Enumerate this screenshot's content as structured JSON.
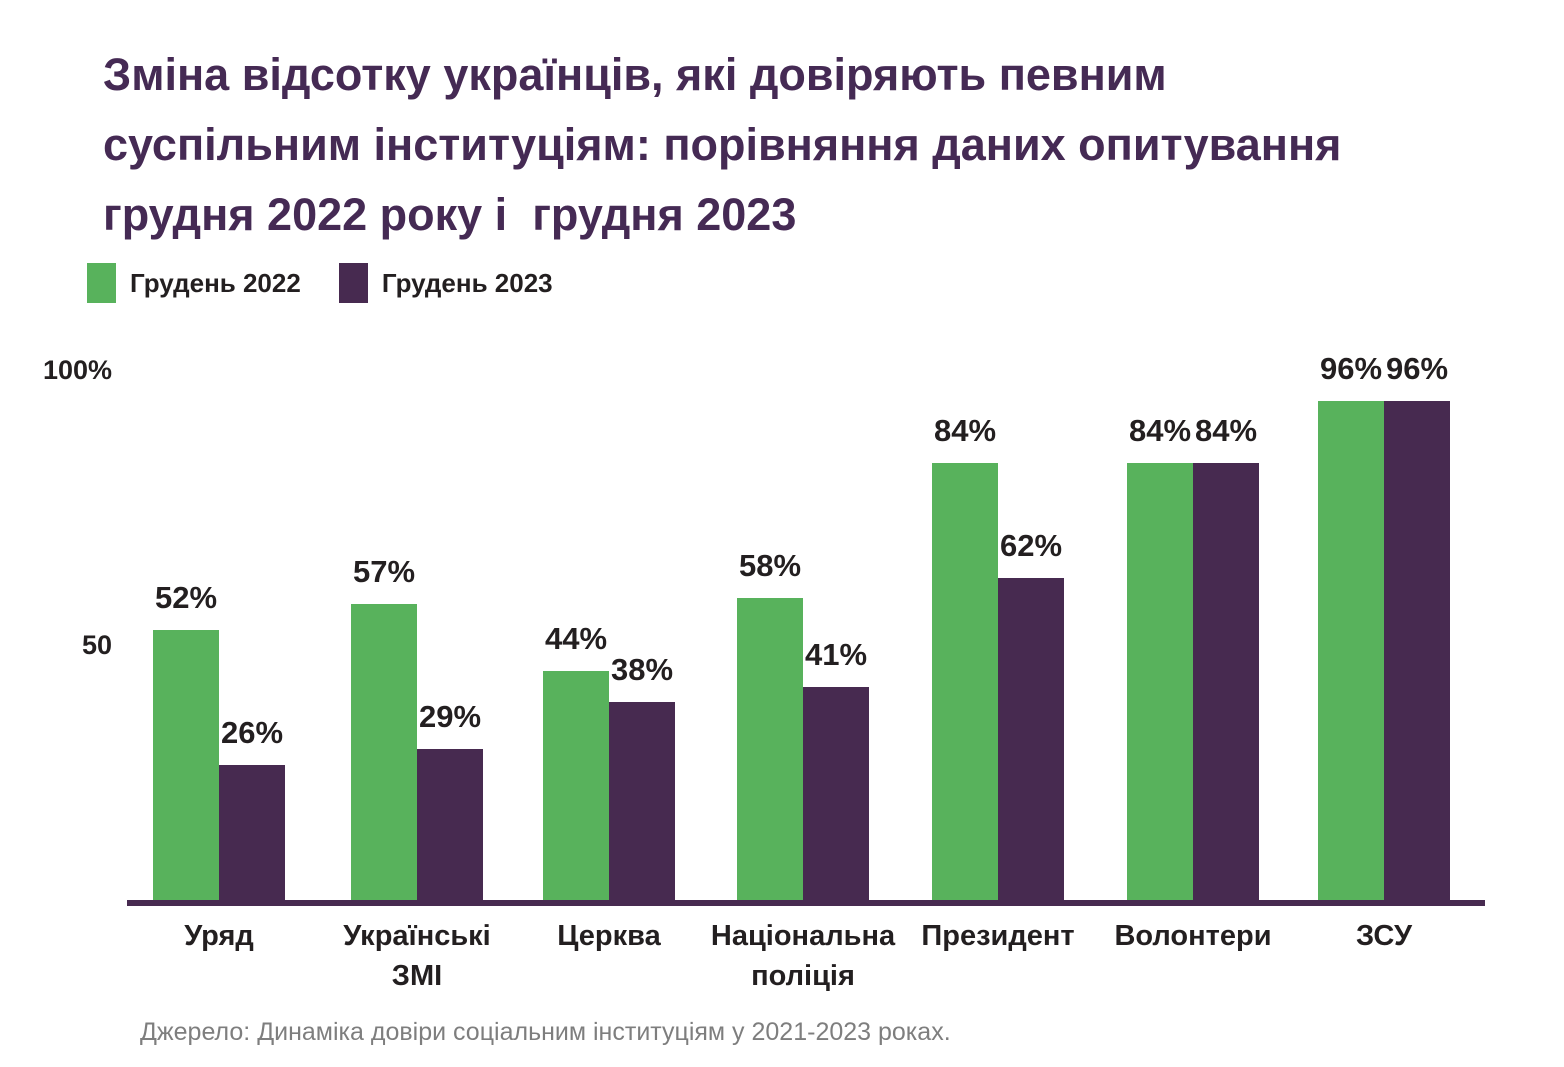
{
  "title": "Зміна відсотку українців, які довіряють певним суспільним інституціям: порівняння даних опитування грудня 2022 року і  грудня 2023",
  "legend": [
    {
      "label": "Грудень 2022",
      "color": "#58b25c"
    },
    {
      "label": "Грудень 2023",
      "color": "#472a50"
    }
  ],
  "y_axis": {
    "labels": [
      {
        "text": "100%",
        "value": 100
      },
      {
        "text": "50",
        "value": 50
      }
    ]
  },
  "source": "Джерело: Динаміка довіри соціальним інституціям у 2021-2023 роках.",
  "colors": {
    "title": "#452a54",
    "bar_2022": "#58b25c",
    "bar_2023": "#472a50",
    "axis_line": "#472a50",
    "text": "#231f20",
    "source_text": "#7e7e7e",
    "background": "#ffffff"
  },
  "chart_data": {
    "type": "bar",
    "title": "Зміна відсотку українців, які довіряють певним суспільним інституціям: порівняння даних опитування грудня 2022 року і  грудня 2023",
    "categories": [
      "Уряд",
      "Українські\nЗМІ",
      "Церква",
      "Національна\nполіція",
      "Президент",
      "Волонтери",
      "ЗСУ"
    ],
    "series": [
      {
        "name": "Грудень 2022",
        "color": "#58b25c",
        "values": [
          52,
          57,
          44,
          58,
          84,
          84,
          96
        ]
      },
      {
        "name": "Грудень 2023",
        "color": "#472a50",
        "values": [
          26,
          29,
          38,
          41,
          62,
          84,
          96
        ]
      }
    ],
    "value_suffix": "%",
    "xlabel": "",
    "ylabel": "",
    "ylim": [
      0,
      100
    ],
    "y_tick_labels": [
      "100%",
      "50"
    ],
    "grid": false,
    "legend_position": "top-left",
    "data_labels": true
  }
}
